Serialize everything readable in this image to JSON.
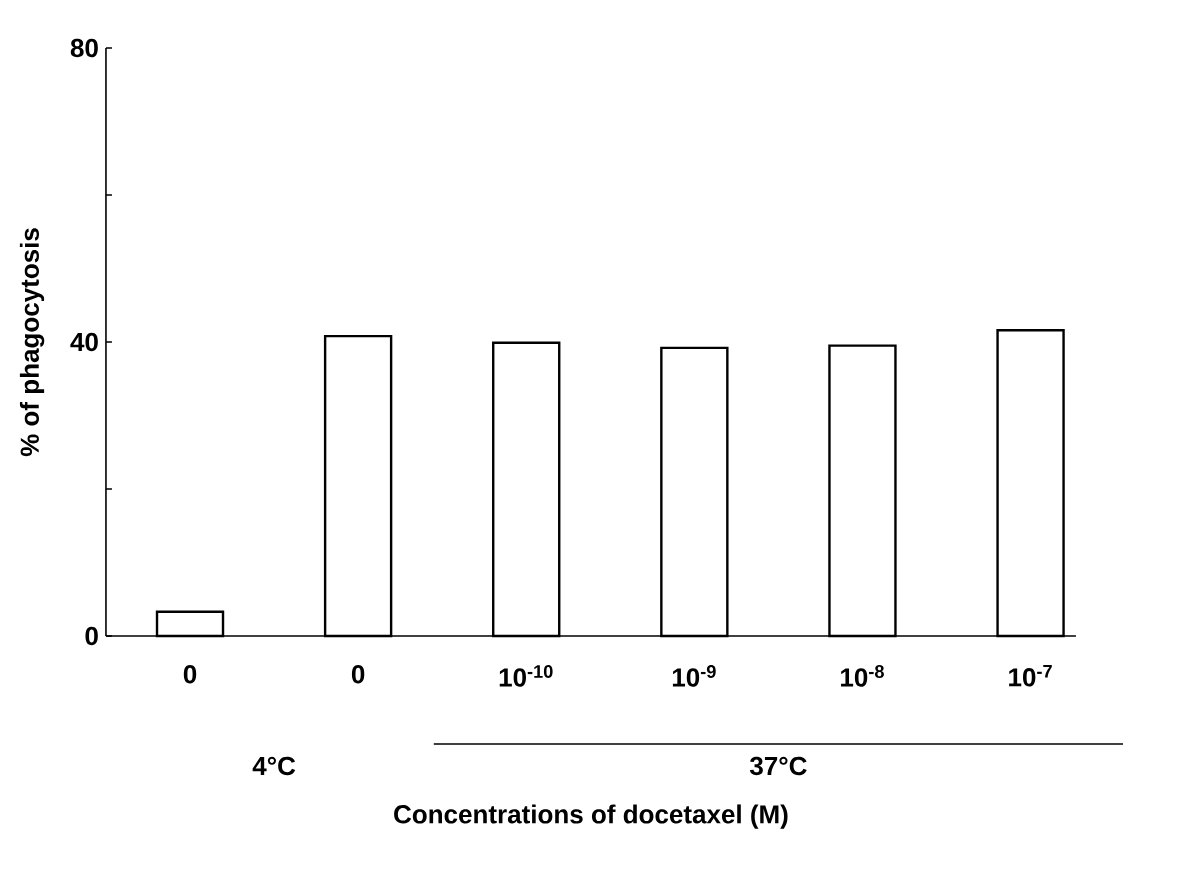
{
  "chart_data": {
    "type": "bar",
    "xlabel": "Concentrations of docetaxel (M)",
    "ylabel": "% of phagocytosis",
    "categories": [
      "0",
      "0",
      "10$^{-10}$",
      "10$^{-9}$",
      "10$^{-8}$",
      "10$^{-7}$"
    ],
    "values": [
      3.3,
      40.8,
      39.9,
      39.2,
      39.5,
      41.6
    ],
    "color": "#ffffff",
    "ylim": [
      0,
      80
    ],
    "yticks": [
      0,
      {
        "value": 20,
        "label": null
      },
      40,
      {
        "value": 60,
        "label": null
      },
      80
    ],
    "annotations": [
      "4°C",
      "37°C"
    ],
    "grid": false
  }
}
